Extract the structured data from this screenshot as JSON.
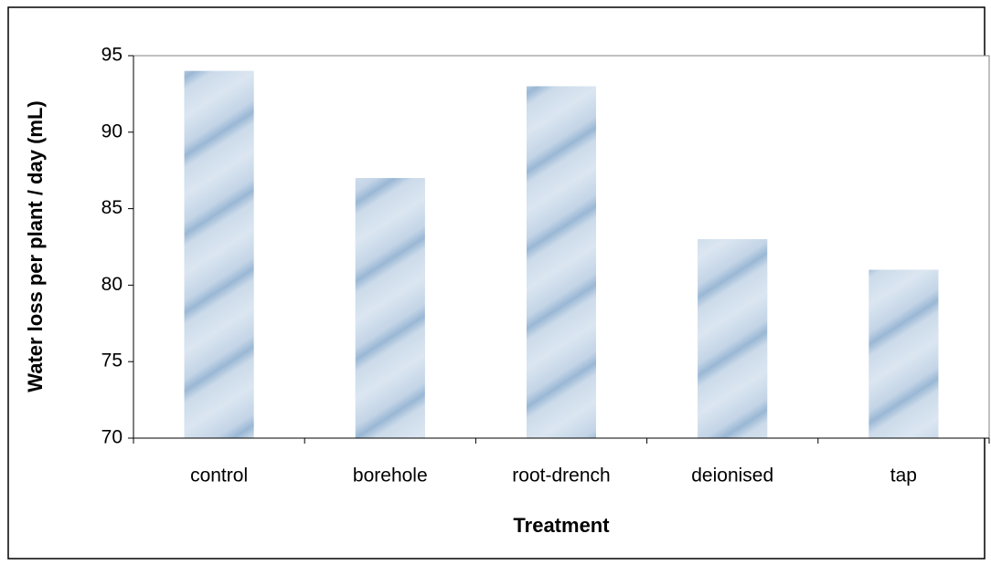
{
  "chart_data": {
    "type": "bar",
    "categories": [
      "control",
      "borehole",
      "root-drench",
      "deionised",
      "tap"
    ],
    "values": [
      94,
      87,
      93,
      83,
      81
    ],
    "color": "#b9cde2",
    "ylim": [
      70,
      95
    ],
    "yticks": [
      70,
      75,
      80,
      85,
      90,
      95
    ],
    "xlabel": "Treatment",
    "ylabel": "Water loss per plant / day (mL)",
    "grid": false
  }
}
